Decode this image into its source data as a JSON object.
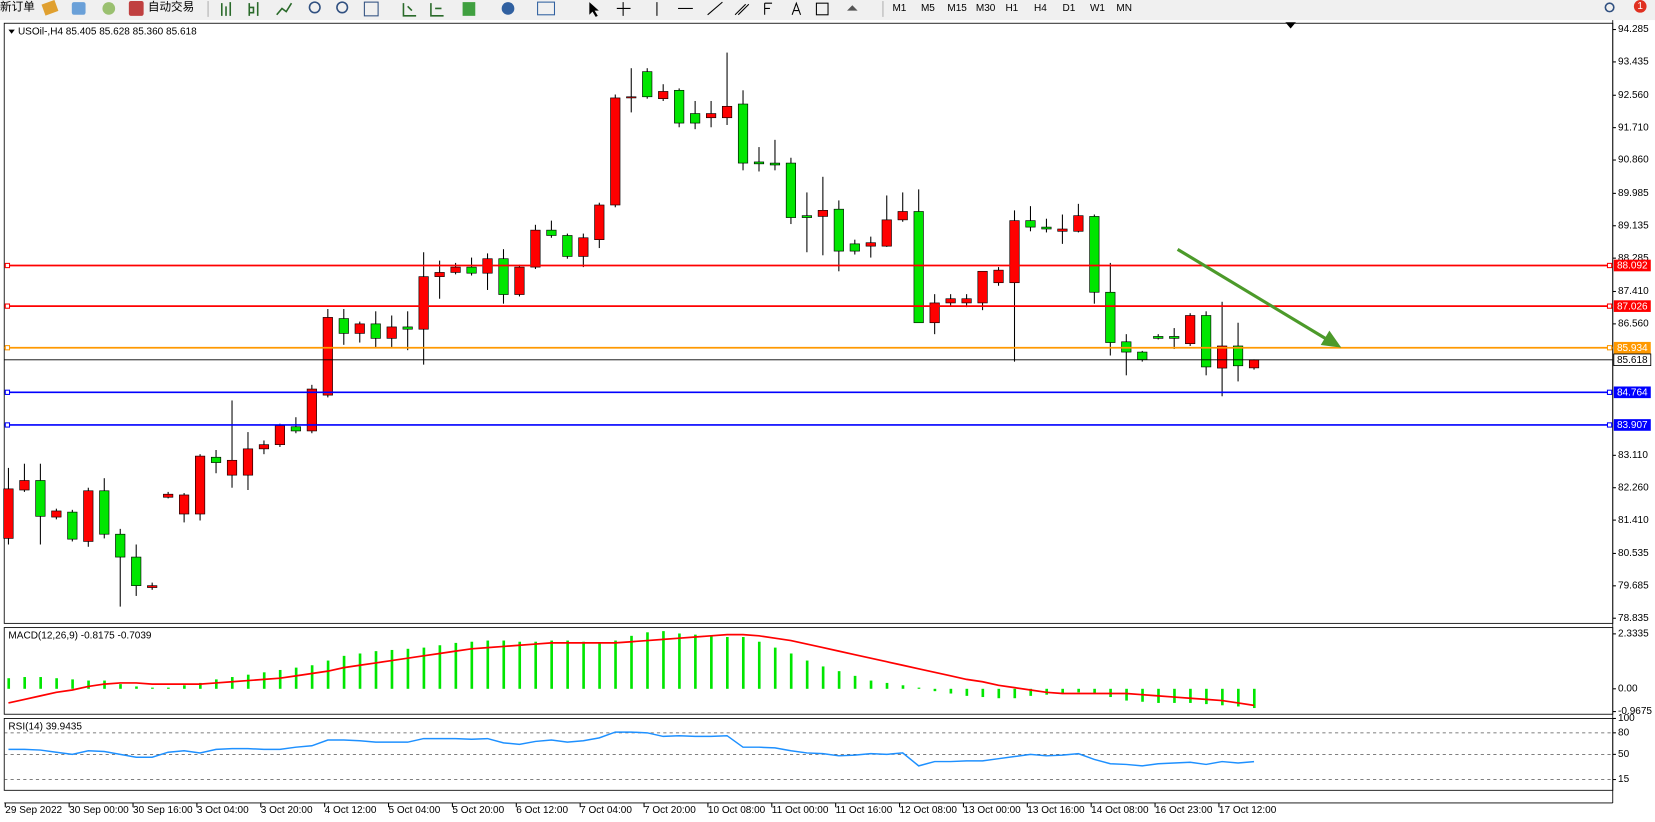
{
  "toolbar": {
    "new_order": "新订单",
    "auto_trading": "自动交易",
    "timeframes": [
      "M1",
      "M5",
      "M15",
      "M30",
      "H1",
      "H4",
      "D1",
      "W1",
      "MN"
    ],
    "alert_count": "1"
  },
  "chart_data": [
    {
      "type": "candlestick",
      "title": "USOil-,H4  85.405 85.628 85.360 85.618",
      "categories": [
        "29 Sep 2022",
        null,
        null,
        null,
        "30 Sep 00:00",
        null,
        null,
        null,
        "30 Sep 16:00",
        null,
        null,
        null,
        "3 Oct 04:00",
        null,
        null,
        null,
        "3 Oct 20:00",
        null,
        null,
        null,
        "4 Oct 12:00",
        null,
        null,
        null,
        "5 Oct 04:00",
        null,
        null,
        null,
        "5 Oct 20:00",
        null,
        null,
        null,
        "6 Oct 12:00",
        null,
        null,
        null,
        "7 Oct 04:00",
        null,
        null,
        null,
        "7 Oct 20:00",
        null,
        null,
        null,
        "10 Oct 08:00",
        null,
        null,
        null,
        "11 Oct 00:00",
        null,
        null,
        null,
        "11 Oct 16:00",
        null,
        null,
        null,
        "12 Oct 08:00",
        null,
        null,
        null,
        "13 Oct 00:00",
        null,
        null,
        null,
        "13 Oct 16:00",
        null,
        null,
        null,
        "14 Oct 08:00",
        null,
        null,
        null,
        "16 Oct 23:00",
        null,
        null,
        null,
        "17 Oct 12:00",
        null,
        null
      ],
      "open": [
        80.93,
        82.2,
        82.45,
        81.49,
        81.62,
        80.85,
        82.18,
        81.04,
        80.44,
        79.64,
        82.01,
        81.57,
        81.57,
        83.06,
        82.59,
        82.59,
        83.28,
        83.39,
        83.86,
        83.75,
        84.69,
        86.7,
        86.31,
        86.56,
        86.18,
        86.48,
        86.42,
        87.8,
        87.91,
        88.05,
        87.89,
        88.27,
        87.33,
        88.05,
        89.02,
        88.88,
        88.33,
        88.77,
        89.68,
        92.49,
        93.18,
        92.47,
        92.69,
        92.08,
        91.97,
        91.97,
        92.33,
        90.81,
        90.78,
        90.78,
        89.4,
        89.38,
        89.57,
        88.66,
        88.6,
        88.6,
        89.29,
        89.51,
        86.59,
        87.11,
        87.11,
        87.11,
        87.64,
        87.64,
        89.27,
        89.1,
        88.99,
        88.99,
        89.38,
        87.39,
        86.09,
        85.82,
        86.23,
        86.23,
        86.04,
        86.78,
        85.4,
        85.98,
        85.405
      ],
      "high": [
        82.78,
        82.89,
        82.89,
        81.71,
        81.68,
        82.26,
        82.51,
        81.18,
        80.77,
        79.77,
        82.15,
        82.12,
        83.14,
        83.25,
        84.55,
        83.72,
        83.5,
        83.94,
        84.11,
        84.96,
        86.95,
        86.95,
        86.62,
        86.89,
        86.78,
        86.89,
        88.44,
        88.22,
        88.16,
        88.3,
        88.41,
        88.52,
        88.11,
        89.16,
        89.27,
        88.93,
        88.93,
        89.74,
        92.58,
        93.27,
        93.27,
        92.85,
        92.74,
        92.41,
        92.41,
        93.68,
        92.69,
        91.2,
        91.39,
        90.92,
        90.01,
        90.42,
        89.8,
        88.77,
        88.85,
        89.93,
        90.01,
        90.09,
        87.34,
        87.34,
        87.34,
        87.94,
        88.05,
        89.54,
        89.65,
        89.32,
        89.43,
        89.71,
        89.43,
        88.16,
        86.29,
        85.85,
        86.29,
        86.45,
        86.84,
        86.89,
        87.14,
        86.59,
        85.628
      ],
      "low": [
        80.77,
        82.15,
        80.77,
        81.43,
        80.85,
        80.71,
        80.93,
        79.14,
        79.42,
        79.58,
        81.98,
        81.35,
        81.4,
        82.64,
        82.26,
        82.2,
        83.14,
        83.33,
        83.69,
        83.69,
        84.63,
        86.01,
        86.07,
        85.95,
        85.95,
        85.87,
        85.49,
        87.22,
        87.86,
        87.83,
        87.45,
        87.09,
        87.28,
        88.0,
        88.82,
        88.27,
        88.05,
        88.55,
        89.62,
        92.11,
        92.47,
        92.41,
        91.72,
        91.67,
        91.72,
        91.78,
        90.59,
        90.56,
        90.59,
        89.18,
        88.44,
        88.36,
        87.94,
        88.38,
        88.3,
        88.58,
        89.24,
        86.59,
        86.29,
        87.03,
        87.0,
        86.92,
        87.56,
        85.57,
        88.99,
        88.96,
        88.66,
        88.96,
        87.09,
        85.73,
        85.21,
        85.57,
        86.15,
        85.9,
        85.98,
        85.21,
        84.66,
        85.05,
        85.36
      ],
      "close": [
        82.23,
        82.45,
        81.51,
        81.65,
        80.91,
        82.18,
        81.04,
        80.44,
        79.69,
        79.69,
        82.09,
        82.07,
        83.09,
        82.92,
        82.98,
        83.28,
        83.39,
        83.89,
        83.75,
        84.85,
        86.73,
        86.31,
        86.56,
        86.18,
        86.48,
        86.42,
        87.8,
        87.91,
        88.05,
        87.89,
        88.27,
        87.33,
        88.05,
        89.02,
        88.88,
        88.33,
        88.82,
        89.68,
        92.49,
        92.52,
        92.52,
        92.66,
        91.83,
        91.83,
        92.08,
        92.27,
        90.78,
        90.76,
        90.73,
        89.35,
        89.35,
        89.54,
        88.47,
        88.47,
        88.69,
        89.29,
        89.51,
        86.59,
        87.11,
        87.22,
        87.22,
        87.94,
        87.97,
        89.27,
        89.1,
        89.05,
        89.05,
        89.4,
        87.39,
        86.07,
        85.82,
        85.62,
        86.18,
        86.18,
        86.78,
        85.43,
        85.98,
        85.46,
        85.618
      ],
      "up_color": "#ff0000",
      "down_color": "#00e600",
      "ylim": [
        78.7,
        94.45
      ],
      "yticks": [
        94.285,
        93.435,
        {
          "value": 92.56,
          "label": "92.560"
        },
        {
          "value": 91.71,
          "label": "91.710"
        },
        {
          "value": 90.86,
          "label": "90.860"
        },
        89.985,
        89.135,
        88.285,
        {
          "value": 87.41,
          "label": "87.410"
        },
        {
          "value": 86.56,
          "label": "86.560"
        },
        {
          "value": 83.11,
          "label": "83.110"
        },
        {
          "value": 82.26,
          "label": "82.260"
        },
        {
          "value": 81.41,
          "label": "81.410"
        },
        80.535,
        79.685,
        78.835
      ],
      "levels": [
        {
          "value": 88.092,
          "color": "#ff0000"
        },
        {
          "value": 87.026,
          "color": "#ff0000"
        },
        {
          "value": 85.934,
          "color": "#ff9900"
        },
        {
          "value": 84.764,
          "color": "#0000ff"
        },
        {
          "value": 83.907,
          "color": "#0000ff"
        }
      ],
      "last_price": 85.618
    },
    {
      "type": "macd",
      "title": "MACD(12,26,9) -0.8175 -0.7039",
      "series": [
        {
          "style": "bar",
          "color": "#00e600",
          "values": [
            0.45,
            0.5,
            0.5,
            0.45,
            0.4,
            0.35,
            0.35,
            0.2,
            0.1,
            0.05,
            0.05,
            0.15,
            0.25,
            0.4,
            0.5,
            0.6,
            0.7,
            0.8,
            0.9,
            1.0,
            1.2,
            1.4,
            1.5,
            1.6,
            1.65,
            1.7,
            1.75,
            1.85,
            1.95,
            2.0,
            2.05,
            2.05,
            2.0,
            2.0,
            2.05,
            2.05,
            2.0,
            1.95,
            2.05,
            2.25,
            2.4,
            2.45,
            2.35,
            2.3,
            2.25,
            2.2,
            2.2,
            2.0,
            1.75,
            1.5,
            1.2,
            0.95,
            0.75,
            0.55,
            0.35,
            0.25,
            0.15,
            0.05,
            -0.1,
            -0.2,
            -0.3,
            -0.35,
            -0.4,
            -0.4,
            -0.3,
            -0.25,
            -0.2,
            -0.15,
            -0.2,
            -0.35,
            -0.5,
            -0.55,
            -0.6,
            -0.6,
            -0.6,
            -0.65,
            -0.7,
            -0.75,
            -0.8175
          ]
        },
        {
          "style": "line",
          "color": "#ff0000",
          "values": [
            -0.6,
            -0.45,
            -0.3,
            -0.15,
            -0.05,
            0.1,
            0.2,
            0.25,
            0.25,
            0.2,
            0.2,
            0.2,
            0.2,
            0.25,
            0.3,
            0.35,
            0.4,
            0.45,
            0.55,
            0.65,
            0.75,
            0.9,
            1.0,
            1.1,
            1.2,
            1.3,
            1.4,
            1.5,
            1.6,
            1.7,
            1.75,
            1.8,
            1.85,
            1.9,
            1.95,
            1.95,
            1.95,
            1.95,
            1.95,
            2.0,
            2.05,
            2.1,
            2.15,
            2.2,
            2.25,
            2.3,
            2.3,
            2.25,
            2.15,
            2.05,
            1.9,
            1.75,
            1.6,
            1.45,
            1.3,
            1.15,
            1.0,
            0.85,
            0.7,
            0.55,
            0.4,
            0.3,
            0.15,
            0.05,
            -0.05,
            -0.15,
            -0.2,
            -0.2,
            -0.2,
            -0.2,
            -0.2,
            -0.25,
            -0.3,
            -0.35,
            -0.4,
            -0.45,
            -0.5,
            -0.6,
            -0.7039
          ]
        }
      ],
      "ylim": [
        -1.08,
        2.6
      ],
      "yticks": [
        2.3335,
        {
          "value": 0,
          "label": "0.00"
        },
        -0.9675
      ]
    },
    {
      "type": "rsi",
      "title": "RSI(14) 39.9435",
      "series": [
        {
          "style": "line",
          "color": "#1e90ff",
          "values": [
            57,
            57,
            56,
            53,
            50,
            55,
            54,
            50,
            46,
            46,
            53,
            55,
            52,
            57,
            58,
            58,
            57,
            57,
            60,
            62,
            70,
            70,
            69,
            67,
            67,
            67,
            72,
            72,
            72,
            71,
            72,
            66,
            64,
            68,
            70,
            67,
            69,
            73,
            81,
            81,
            80,
            75,
            76,
            75,
            75,
            76,
            60,
            60,
            59,
            55,
            52,
            51,
            48,
            49,
            51,
            50,
            52,
            34,
            40,
            40,
            41,
            41,
            44,
            47,
            50,
            48,
            49,
            51,
            43,
            37,
            36,
            34,
            37,
            38,
            39,
            36,
            40,
            38,
            39.9435
          ]
        }
      ],
      "ylim": [
        0,
        100
      ],
      "yticks": [
        100,
        80,
        50,
        15
      ],
      "levels": [
        80,
        50,
        15
      ]
    }
  ]
}
